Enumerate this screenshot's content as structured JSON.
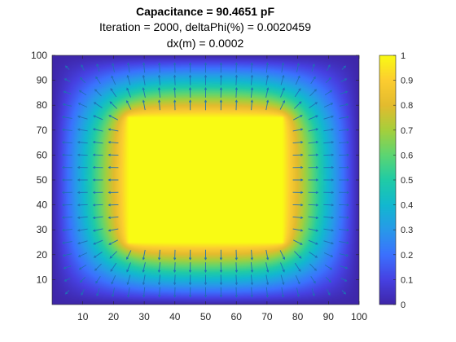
{
  "chart_data": {
    "type": "heatmap",
    "title": "Capacitance = 90.4651 pF",
    "subtitle_lines": [
      "Iteration = 2000, deltaPhi(%) = 0.0020459",
      "dx(m) = 0.0002"
    ],
    "xlim": [
      0,
      100
    ],
    "ylim": [
      0,
      100
    ],
    "x_ticks": [
      "10",
      "20",
      "30",
      "40",
      "50",
      "60",
      "70",
      "80",
      "90",
      "100"
    ],
    "y_ticks": [
      "10",
      "20",
      "30",
      "40",
      "50",
      "60",
      "70",
      "80",
      "90",
      "100"
    ],
    "colorbar": {
      "clim": [
        0,
        1
      ],
      "ticks": [
        "0",
        "0.1",
        "0.2",
        "0.3",
        "0.4",
        "0.5",
        "0.6",
        "0.7",
        "0.8",
        "0.9",
        "1"
      ],
      "colormap": "parula"
    },
    "conductor": {
      "x_range": [
        25,
        75
      ],
      "y_range": [
        25,
        75
      ],
      "potential": 1
    },
    "boundary_potential": 0,
    "overlay": "electric field quiver arrows pointing outward from the conductor",
    "grid": false
  },
  "colors": {
    "axis": "#262626",
    "arrow": "#1f6fb4",
    "background": "#ffffff"
  }
}
